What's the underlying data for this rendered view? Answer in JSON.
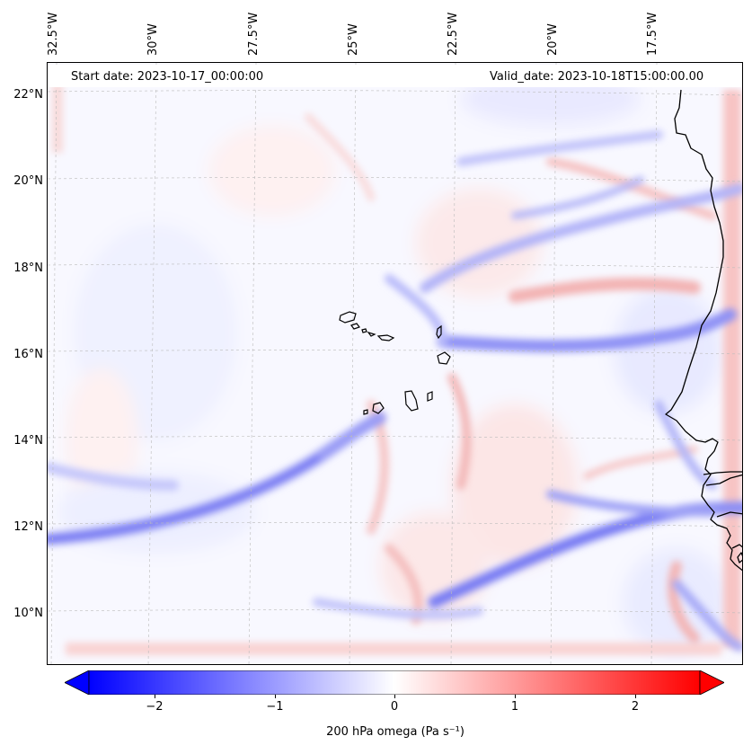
{
  "map": {
    "start_date": "Start date: 2023-10-17_00:00:00",
    "valid_date": "Valid_date: 2023-10-18T15:00:00.00",
    "lon_labels": [
      "32.5°W",
      "30°W",
      "27.5°W",
      "25°W",
      "22.5°W",
      "20°W",
      "17.5°W"
    ],
    "lat_labels": [
      "22°N",
      "20°N",
      "18°N",
      "16°N",
      "14°N",
      "12°N",
      "10°N"
    ],
    "lon_values": [
      -32.5,
      -30,
      -27.5,
      -25,
      -22.5,
      -20,
      -17.5
    ],
    "lat_values": [
      22,
      20,
      18,
      16,
      14,
      12,
      10
    ],
    "extent": {
      "lon_min": -32.75,
      "lon_max": -15.6,
      "lat_min": 8.85,
      "lat_max": 22.75
    }
  },
  "colorbar": {
    "label": "200 hPa omega (Pa s⁻¹)",
    "ticks": [
      "−2",
      "−1",
      "0",
      "1",
      "2"
    ],
    "tick_values": [
      -2,
      -1,
      0,
      1,
      2
    ],
    "range": [
      -2.75,
      2.75
    ],
    "min_color": "#0000ff",
    "mid_color": "#ffffff",
    "max_color": "#ff0000",
    "extend": "both"
  },
  "colors": {
    "coast": "#000000",
    "grid": "#bbbbbb"
  }
}
